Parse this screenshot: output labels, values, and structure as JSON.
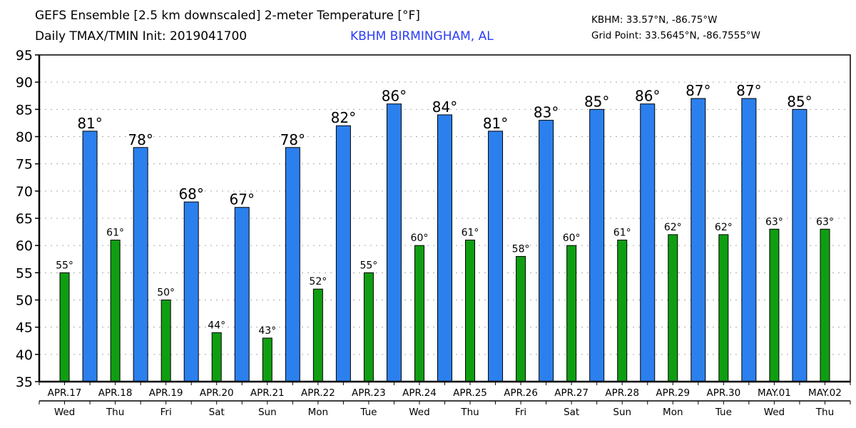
{
  "header": {
    "title_line1": "GEFS Ensemble [2.5 km downscaled] 2-meter Temperature [°F]",
    "title_line2": "Daily TMAX/TMIN Init: 2019041700",
    "station_name": "KBHM BIRMINGHAM, AL",
    "station_coords": "KBHM: 33.57°N, -86.75°W",
    "grid_point": "Grid Point: 33.5645°N, -86.7555°W"
  },
  "colors": {
    "tmax": "#2b80ee",
    "tmin": "#0f9e12",
    "station_text": "#2b3df5",
    "grid": "#aaaaaa"
  },
  "chart_data": {
    "type": "bar",
    "title": "GEFS Ensemble [2.5 km downscaled] 2-meter Temperature [°F]",
    "subtitle": "Daily TMAX/TMIN Init: 2019041700",
    "xlabel": "",
    "ylabel": "",
    "ylim": [
      35,
      95
    ],
    "yticks": [
      35,
      40,
      45,
      50,
      55,
      60,
      65,
      70,
      75,
      80,
      85,
      90,
      95
    ],
    "grid": true,
    "legend": "none",
    "categories": [
      "APR.17",
      "APR.18",
      "APR.19",
      "APR.20",
      "APR.21",
      "APR.22",
      "APR.23",
      "APR.24",
      "APR.25",
      "APR.26",
      "APR.27",
      "APR.28",
      "APR.29",
      "APR.30",
      "MAY.01",
      "MAY.02"
    ],
    "weekdays": [
      "Wed",
      "Thu",
      "Fri",
      "Sat",
      "Sun",
      "Mon",
      "Tue",
      "Wed",
      "Thu",
      "Fri",
      "Sat",
      "Sun",
      "Mon",
      "Tue",
      "Wed",
      "Thu"
    ],
    "series": [
      {
        "name": "TMIN",
        "values": [
          55,
          61,
          50,
          44,
          43,
          52,
          55,
          60,
          61,
          58,
          60,
          61,
          62,
          62,
          63,
          63
        ],
        "labels": [
          "55°",
          "61°",
          "50°",
          "44°",
          "43°",
          "52°",
          "55°",
          "60°",
          "61°",
          "58°",
          "60°",
          "61°",
          "62°",
          "62°",
          "63°",
          "63°"
        ]
      },
      {
        "name": "TMAX",
        "values": [
          81,
          78,
          68,
          67,
          78,
          82,
          86,
          84,
          81,
          83,
          85,
          86,
          87,
          87,
          85
        ],
        "labels": [
          "81°",
          "78°",
          "68°",
          "67°",
          "78°",
          "82°",
          "86°",
          "84°",
          "81°",
          "83°",
          "85°",
          "86°",
          "87°",
          "87°",
          "85°"
        ]
      }
    ]
  }
}
